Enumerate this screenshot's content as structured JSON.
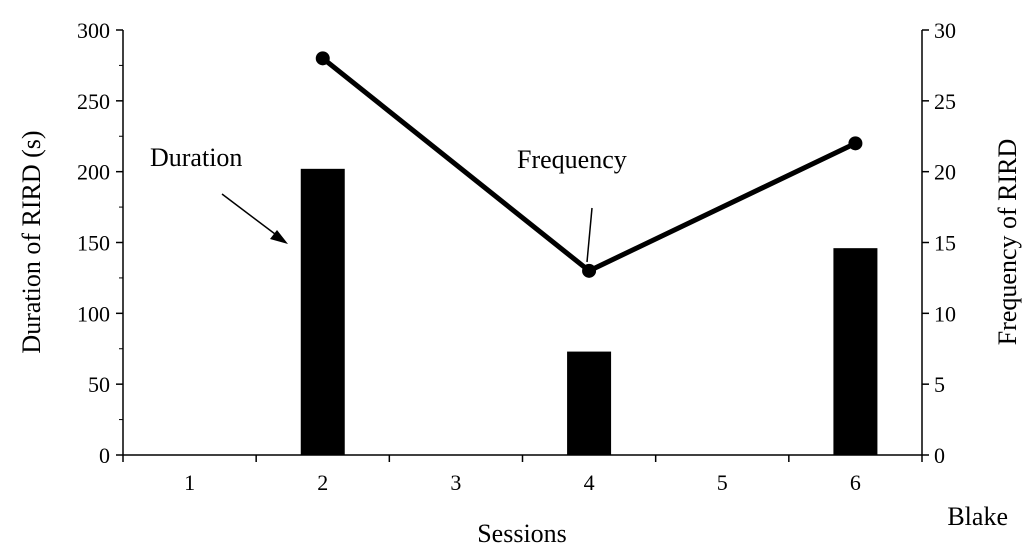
{
  "chart_data": {
    "type": "bar",
    "title": "",
    "participant_label": "Blake",
    "xlabel": "Sessions",
    "ylabel": "Duration of RIRD (s)",
    "y2label": "Frequency of RIRD",
    "categories": [
      "1",
      "2",
      "3",
      "4",
      "5",
      "6"
    ],
    "ylim": [
      0,
      300
    ],
    "y2lim": [
      0,
      30
    ],
    "yticks": [
      "0",
      "50",
      "100",
      "150",
      "200",
      "250",
      "300"
    ],
    "y2ticks": [
      "0",
      "5",
      "10",
      "15",
      "20",
      "25",
      "30"
    ],
    "grid": false,
    "legend": "none",
    "series": [
      {
        "name": "Duration",
        "kind": "bar",
        "axis": "left",
        "color": "#000000",
        "points": [
          {
            "x": "2",
            "y": 202
          },
          {
            "x": "4",
            "y": 73
          },
          {
            "x": "6",
            "y": 146
          }
        ]
      },
      {
        "name": "Frequency",
        "kind": "line",
        "axis": "right",
        "color": "#000000",
        "points": [
          {
            "x": "2",
            "y": 28
          },
          {
            "x": "4",
            "y": 13
          },
          {
            "x": "6",
            "y": 22
          }
        ]
      }
    ],
    "annotations": [
      {
        "text": "Duration",
        "points_to": "Duration"
      },
      {
        "text": "Frequency",
        "points_to": "Frequency"
      }
    ]
  }
}
